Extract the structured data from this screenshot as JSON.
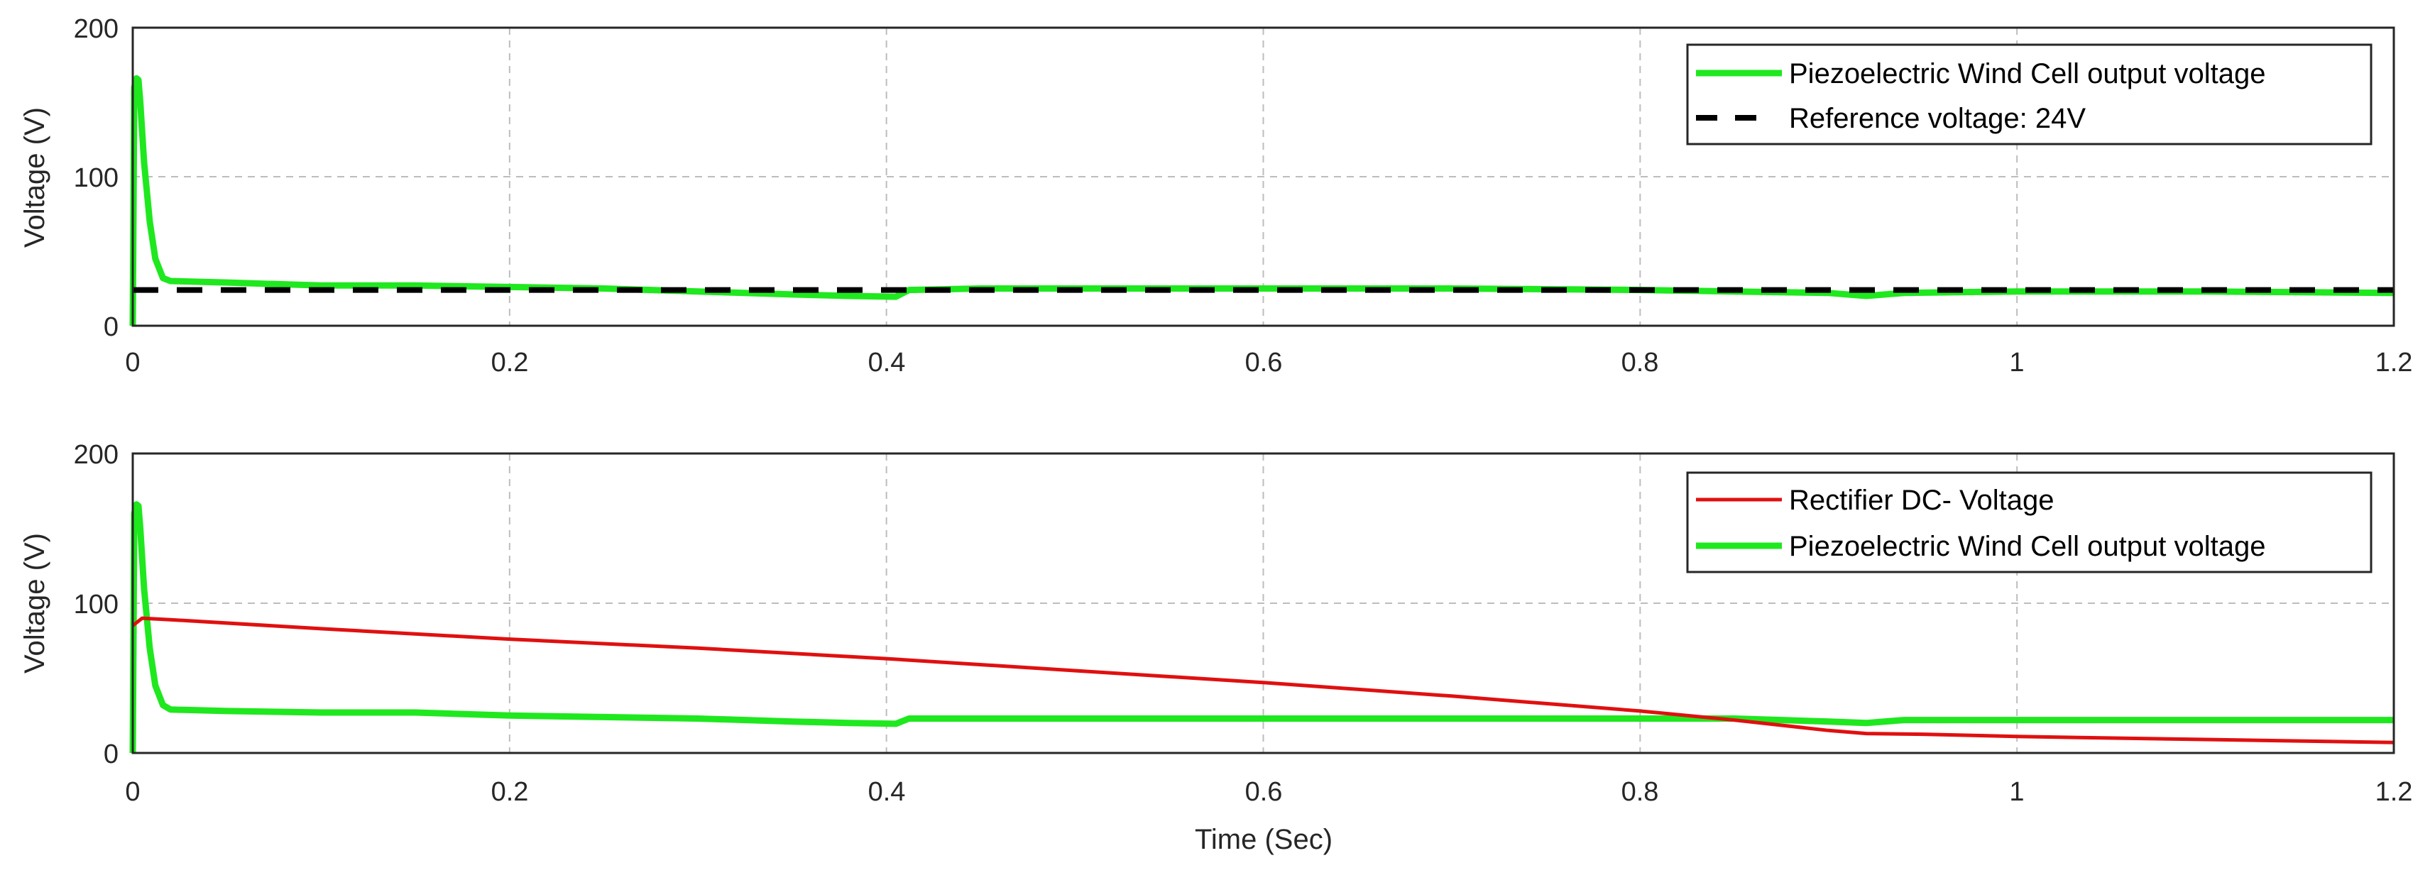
{
  "figure": {
    "xlabel": "Time (Sec)",
    "colors": {
      "piezo_green": "#1fe81f",
      "rectifier_red": "#e01010",
      "reference_black": "#000000"
    }
  },
  "chart_data": [
    {
      "type": "line",
      "title": "",
      "xlabel": "",
      "ylabel": "Voltage (V)",
      "xlim": [
        0,
        1.2
      ],
      "ylim": [
        0,
        200
      ],
      "xticks": [
        "0",
        "0.2",
        "0.4",
        "0.6",
        "0.8",
        "1",
        "1.2"
      ],
      "yticks": [
        "0",
        "100",
        "200"
      ],
      "grid": true,
      "legend_position": "upper right",
      "series": [
        {
          "name": "Piezoelectric Wind Cell output voltage",
          "color": "#1fe81f",
          "style": "solid",
          "x": [
            0,
            0.0008,
            0.002,
            0.003,
            0.004,
            0.006,
            0.009,
            0.012,
            0.016,
            0.02,
            0.05,
            0.1,
            0.15,
            0.2,
            0.25,
            0.3,
            0.35,
            0.38,
            0.405,
            0.412,
            0.45,
            0.5,
            0.6,
            0.7,
            0.8,
            0.85,
            0.9,
            0.92,
            0.94,
            1.0,
            1.1,
            1.2
          ],
          "y": [
            0,
            160,
            166,
            165,
            150,
            110,
            70,
            45,
            32,
            30,
            29,
            27,
            27,
            26,
            25,
            23,
            21,
            20,
            19.5,
            24,
            25,
            25,
            25,
            25,
            24,
            23,
            22,
            20,
            22,
            23,
            23,
            22
          ]
        },
        {
          "name": "Reference voltage: 24V",
          "color": "#000000",
          "style": "dashed",
          "x": [
            0,
            1.2
          ],
          "y": [
            24,
            24
          ]
        }
      ]
    },
    {
      "type": "line",
      "title": "",
      "xlabel": "Time (Sec)",
      "ylabel": "Voltage (V)",
      "xlim": [
        0,
        1.2
      ],
      "ylim": [
        0,
        200
      ],
      "xticks": [
        "0",
        "0.2",
        "0.4",
        "0.6",
        "0.8",
        "1",
        "1.2"
      ],
      "yticks": [
        "0",
        "100",
        "200"
      ],
      "grid": true,
      "legend_position": "upper right",
      "series": [
        {
          "name": "Rectifier DC- Voltage",
          "color": "#e01010",
          "style": "solid",
          "x": [
            0,
            0.005,
            0.02,
            0.1,
            0.2,
            0.3,
            0.4,
            0.5,
            0.6,
            0.7,
            0.8,
            0.85,
            0.9,
            0.92,
            0.95,
            1.0,
            1.1,
            1.2
          ],
          "y": [
            85,
            90,
            89,
            83,
            76,
            70,
            63,
            55,
            47,
            38,
            28,
            22,
            15,
            13,
            12.5,
            11,
            9,
            7
          ]
        },
        {
          "name": "Piezoelectric Wind Cell output voltage",
          "color": "#1fe81f",
          "style": "solid",
          "x": [
            0,
            0.0008,
            0.002,
            0.003,
            0.004,
            0.006,
            0.009,
            0.012,
            0.016,
            0.02,
            0.05,
            0.1,
            0.15,
            0.2,
            0.25,
            0.3,
            0.35,
            0.38,
            0.405,
            0.412,
            0.45,
            0.5,
            0.6,
            0.7,
            0.8,
            0.85,
            0.9,
            0.92,
            0.94,
            1.0,
            1.1,
            1.2
          ],
          "y": [
            0,
            160,
            166,
            165,
            150,
            110,
            70,
            45,
            32,
            29,
            28,
            27,
            27,
            25,
            24,
            23,
            21,
            20,
            19.5,
            23,
            23,
            23,
            23,
            23,
            23,
            23,
            21,
            20,
            22,
            22,
            22,
            22
          ]
        }
      ]
    }
  ]
}
